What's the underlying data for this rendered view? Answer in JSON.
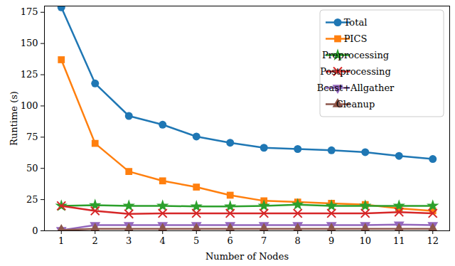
{
  "chart_data": {
    "type": "line",
    "x_label": "Number of Nodes",
    "y_label": "Runtime (s)",
    "x": [
      1,
      2,
      3,
      4,
      5,
      6,
      7,
      8,
      9,
      10,
      11,
      12
    ],
    "xlim": [
      0.5,
      12.5
    ],
    "xticks": [
      1,
      2,
      3,
      4,
      5,
      6,
      7,
      8,
      9,
      10,
      11,
      12
    ],
    "ylim": [
      0,
      180
    ],
    "yticks": [
      0,
      25,
      50,
      75,
      100,
      125,
      150,
      175
    ],
    "grid": false,
    "legend": "upper right",
    "series": [
      {
        "name": "Total",
        "color": "#1f77b4",
        "marker": "circle",
        "values": [
          179,
          118,
          92,
          85,
          75.5,
          70.5,
          66.5,
          65.5,
          64.5,
          63,
          60,
          57.5
        ]
      },
      {
        "name": "PICS",
        "color": "#ff7f0e",
        "marker": "square",
        "values": [
          137,
          70,
          47.5,
          40,
          35,
          28.5,
          24,
          23,
          22,
          21,
          18,
          16
        ]
      },
      {
        "name": "Preprocessing",
        "color": "#2ca02c",
        "marker": "star",
        "values": [
          20,
          20.5,
          20,
          20,
          19.5,
          19.5,
          20,
          21,
          20,
          20,
          20,
          20
        ]
      },
      {
        "name": "Postprocessing",
        "color": "#d62728",
        "marker": "x",
        "values": [
          20,
          16,
          13.5,
          14,
          14,
          14,
          14,
          14,
          14,
          14,
          15,
          14
        ]
      },
      {
        "name": "Bcast+Allgather",
        "color": "#9467bd",
        "marker": "triangle-down",
        "values": [
          0.5,
          4.5,
          4.5,
          4.5,
          4.5,
          4.5,
          4.5,
          4.5,
          4.5,
          4.5,
          5,
          4.5
        ]
      },
      {
        "name": "Cleanup",
        "color": "#8c564b",
        "marker": "triangle",
        "values": [
          0.5,
          1.5,
          1.5,
          1.5,
          1.5,
          1.5,
          1.5,
          1.5,
          1.5,
          1.5,
          1.5,
          1.5
        ]
      }
    ]
  }
}
